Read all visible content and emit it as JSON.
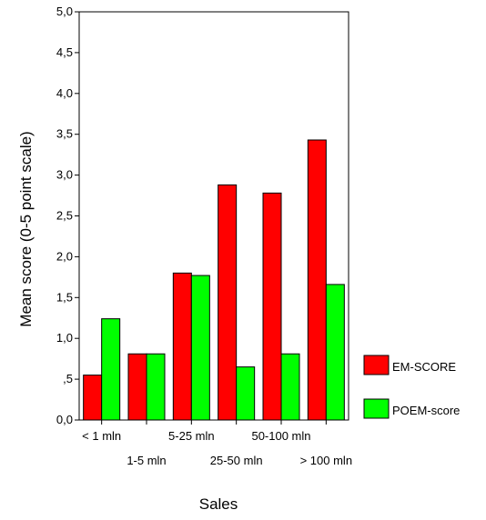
{
  "chart_data": {
    "type": "bar",
    "title": "",
    "xlabel": "Sales",
    "ylabel": "Mean score (0-5 point scale)",
    "ylim": [
      0,
      5
    ],
    "yticks": [
      "0,0",
      ",5",
      "1,0",
      "1,5",
      "2,0",
      "2,5",
      "3,0",
      "3,5",
      "4,0",
      "4,5",
      "5,0"
    ],
    "categories": [
      "< 1 mln",
      "1-5 mln",
      "5-25 mln",
      "25-50 mln",
      "50-100 mln",
      "> 100 mln"
    ],
    "series": [
      {
        "name": "EM-SCORE",
        "color": "#ff0000",
        "values": [
          0.55,
          0.81,
          1.8,
          2.88,
          2.78,
          3.43
        ]
      },
      {
        "name": "POEM-score",
        "color": "#00ff00",
        "values": [
          1.24,
          0.81,
          1.77,
          0.65,
          0.81,
          1.66
        ]
      }
    ],
    "grid": false,
    "legend_position": "right"
  }
}
